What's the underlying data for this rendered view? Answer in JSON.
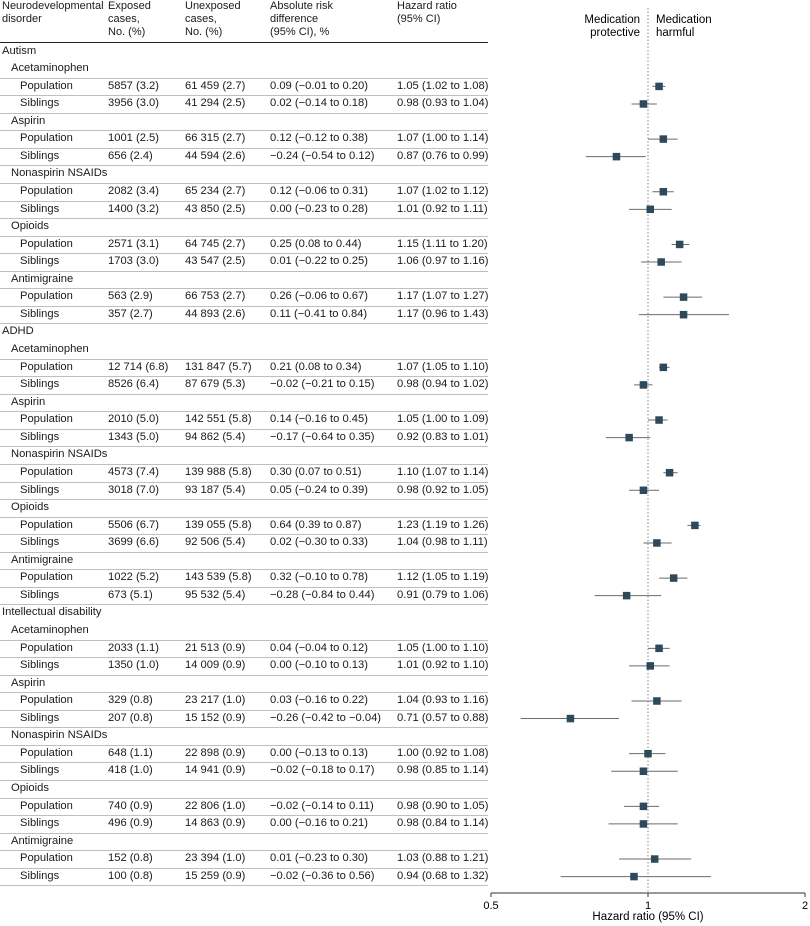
{
  "header": {
    "disorder": "Neurodevelopmental\ndisorder",
    "exposed": "Exposed\ncases,\nNo. (%)",
    "unexposed": "Unexposed\ncases,\nNo. (%)",
    "ard": "Absolute risk\ndifference\n(95% CI), %",
    "hr": "Hazard ratio\n(95% CI)",
    "protective": "Medication\nprotective",
    "harmful": "Medication\nharmful"
  },
  "axis": {
    "label": "Hazard ratio (95% CI)"
  },
  "colors": {
    "marker": "#2e4a5a",
    "ci": "#6b6b6b",
    "refline": "#888888"
  },
  "chart_data": {
    "type": "forest",
    "xscale": "log",
    "xlim": [
      0.5,
      2
    ],
    "ticks": [
      0.5,
      1,
      2
    ],
    "tick_labels": [
      "0.5",
      "1",
      "2"
    ],
    "reference": 1,
    "xlabel": "Hazard ratio (95% CI)",
    "rows": [
      {
        "kind": "disorder",
        "label": "Autism"
      },
      {
        "kind": "med",
        "label": "Acetaminophen"
      },
      {
        "kind": "data",
        "label": "Population",
        "exposed": "5857 (3.2)",
        "unexposed": "61 459 (2.7)",
        "ard": "0.09 (−0.01 to 0.20)",
        "hr_text": "1.05 (1.02 to 1.08)",
        "hr": 1.05,
        "lo": 1.02,
        "hi": 1.08
      },
      {
        "kind": "data",
        "label": "Siblings",
        "exposed": "3956 (3.0)",
        "unexposed": "41 294 (2.5)",
        "ard": "0.02 (−0.14 to 0.18)",
        "hr_text": "0.98 (0.93 to 1.04)",
        "hr": 0.98,
        "lo": 0.93,
        "hi": 1.04
      },
      {
        "kind": "med",
        "label": "Aspirin"
      },
      {
        "kind": "data",
        "label": "Population",
        "exposed": "1001 (2.5)",
        "unexposed": "66 315 (2.7)",
        "ard": "0.12 (−0.12 to 0.38)",
        "hr_text": "1.07 (1.00 to 1.14)",
        "hr": 1.07,
        "lo": 1.0,
        "hi": 1.14
      },
      {
        "kind": "data",
        "label": "Siblings",
        "exposed": "656 (2.4)",
        "unexposed": "44 594 (2.6)",
        "ard": "−0.24 (−0.54 to 0.12)",
        "hr_text": "0.87 (0.76 to 0.99)",
        "hr": 0.87,
        "lo": 0.76,
        "hi": 0.99
      },
      {
        "kind": "med",
        "label": "Nonaspirin NSAIDs"
      },
      {
        "kind": "data",
        "label": "Population",
        "exposed": "2082 (3.4)",
        "unexposed": "65 234 (2.7)",
        "ard": "0.12 (−0.06 to 0.31)",
        "hr_text": "1.07 (1.02 to 1.12)",
        "hr": 1.07,
        "lo": 1.02,
        "hi": 1.12
      },
      {
        "kind": "data",
        "label": "Siblings",
        "exposed": "1400 (3.2)",
        "unexposed": "43 850 (2.5)",
        "ard": "0.00 (−0.23 to 0.28)",
        "hr_text": "1.01 (0.92 to 1.11)",
        "hr": 1.01,
        "lo": 0.92,
        "hi": 1.11
      },
      {
        "kind": "med",
        "label": "Opioids"
      },
      {
        "kind": "data",
        "label": "Population",
        "exposed": "2571 (3.1)",
        "unexposed": "64 745 (2.7)",
        "ard": "0.25 (0.08 to 0.44)",
        "hr_text": "1.15 (1.11 to 1.20)",
        "hr": 1.15,
        "lo": 1.11,
        "hi": 1.2
      },
      {
        "kind": "data",
        "label": "Siblings",
        "exposed": "1703 (3.0)",
        "unexposed": "43 547 (2.5)",
        "ard": "0.01 (−0.22 to 0.25)",
        "hr_text": "1.06 (0.97 to 1.16)",
        "hr": 1.06,
        "lo": 0.97,
        "hi": 1.16
      },
      {
        "kind": "med",
        "label": "Antimigraine"
      },
      {
        "kind": "data",
        "label": "Population",
        "exposed": "563 (2.9)",
        "unexposed": "66 753 (2.7)",
        "ard": "0.26 (−0.06 to 0.67)",
        "hr_text": "1.17 (1.07 to 1.27)",
        "hr": 1.17,
        "lo": 1.07,
        "hi": 1.27
      },
      {
        "kind": "data",
        "label": "Siblings",
        "exposed": "357 (2.7)",
        "unexposed": "44 893 (2.6)",
        "ard": "0.11 (−0.41 to 0.84)",
        "hr_text": "1.17 (0.96 to 1.43)",
        "hr": 1.17,
        "lo": 0.96,
        "hi": 1.43
      },
      {
        "kind": "disorder",
        "label": "ADHD"
      },
      {
        "kind": "med",
        "label": "Acetaminophen"
      },
      {
        "kind": "data",
        "label": "Population",
        "exposed": "12 714 (6.8)",
        "unexposed": "131 847 (5.7)",
        "ard": "0.21 (0.08 to 0.34)",
        "hr_text": "1.07 (1.05 to 1.10)",
        "hr": 1.07,
        "lo": 1.05,
        "hi": 1.1
      },
      {
        "kind": "data",
        "label": "Siblings",
        "exposed": "8526 (6.4)",
        "unexposed": "87 679 (5.3)",
        "ard": "−0.02 (−0.21 to 0.15)",
        "hr_text": "0.98 (0.94 to 1.02)",
        "hr": 0.98,
        "lo": 0.94,
        "hi": 1.02
      },
      {
        "kind": "med",
        "label": "Aspirin"
      },
      {
        "kind": "data",
        "label": "Population",
        "exposed": "2010 (5.0)",
        "unexposed": "142 551 (5.8)",
        "ard": "0.14 (−0.16 to 0.45)",
        "hr_text": "1.05 (1.00 to 1.09)",
        "hr": 1.05,
        "lo": 1.0,
        "hi": 1.09
      },
      {
        "kind": "data",
        "label": "Siblings",
        "exposed": "1343 (5.0)",
        "unexposed": "94 862 (5.4)",
        "ard": "−0.17 (−0.64 to 0.35)",
        "hr_text": "0.92 (0.83 to 1.01)",
        "hr": 0.92,
        "lo": 0.83,
        "hi": 1.01
      },
      {
        "kind": "med",
        "label": "Nonaspirin NSAIDs"
      },
      {
        "kind": "data",
        "label": "Population",
        "exposed": "4573 (7.4)",
        "unexposed": "139 988 (5.8)",
        "ard": "0.30 (0.07 to 0.51)",
        "hr_text": "1.10 (1.07 to 1.14)",
        "hr": 1.1,
        "lo": 1.07,
        "hi": 1.14
      },
      {
        "kind": "data",
        "label": "Siblings",
        "exposed": "3018 (7.0)",
        "unexposed": "93 187 (5.4)",
        "ard": "0.05 (−0.24 to 0.39)",
        "hr_text": "0.98 (0.92 to 1.05)",
        "hr": 0.98,
        "lo": 0.92,
        "hi": 1.05
      },
      {
        "kind": "med",
        "label": "Opioids"
      },
      {
        "kind": "data",
        "label": "Population",
        "exposed": "5506 (6.7)",
        "unexposed": "139 055 (5.8)",
        "ard": "0.64 (0.39 to 0.87)",
        "hr_text": "1.23 (1.19 to 1.26)",
        "hr": 1.23,
        "lo": 1.19,
        "hi": 1.26
      },
      {
        "kind": "data",
        "label": "Siblings",
        "exposed": "3699 (6.6)",
        "unexposed": "92 506 (5.4)",
        "ard": "0.02 (−0.30 to 0.33)",
        "hr_text": "1.04 (0.98 to 1.11)",
        "hr": 1.04,
        "lo": 0.98,
        "hi": 1.11
      },
      {
        "kind": "med",
        "label": "Antimigraine"
      },
      {
        "kind": "data",
        "label": "Population",
        "exposed": "1022 (5.2)",
        "unexposed": "143 539 (5.8)",
        "ard": "0.32 (−0.10 to 0.78)",
        "hr_text": "1.12 (1.05 to 1.19)",
        "hr": 1.12,
        "lo": 1.05,
        "hi": 1.19
      },
      {
        "kind": "data",
        "label": "Siblings",
        "exposed": "673 (5.1)",
        "unexposed": "95 532 (5.4)",
        "ard": "−0.28 (−0.84 to 0.44)",
        "hr_text": "0.91 (0.79 to 1.06)",
        "hr": 0.91,
        "lo": 0.79,
        "hi": 1.06
      },
      {
        "kind": "disorder",
        "label": "Intellectual disability"
      },
      {
        "kind": "med",
        "label": "Acetaminophen"
      },
      {
        "kind": "data",
        "label": "Population",
        "exposed": "2033 (1.1)",
        "unexposed": "21 513 (0.9)",
        "ard": "0.04 (−0.04 to 0.12)",
        "hr_text": "1.05 (1.00 to 1.10)",
        "hr": 1.05,
        "lo": 1.0,
        "hi": 1.1
      },
      {
        "kind": "data",
        "label": "Siblings",
        "exposed": "1350 (1.0)",
        "unexposed": "14 009 (0.9)",
        "ard": "0.00 (−0.10 to 0.13)",
        "hr_text": "1.01 (0.92 to 1.10)",
        "hr": 1.01,
        "lo": 0.92,
        "hi": 1.1
      },
      {
        "kind": "med",
        "label": "Aspirin"
      },
      {
        "kind": "data",
        "label": "Population",
        "exposed": "329 (0.8)",
        "unexposed": "23 217 (1.0)",
        "ard": "0.03 (−0.16 to 0.22)",
        "hr_text": "1.04 (0.93 to 1.16)",
        "hr": 1.04,
        "lo": 0.93,
        "hi": 1.16
      },
      {
        "kind": "data",
        "label": "Siblings",
        "exposed": "207 (0.8)",
        "unexposed": "15 152 (0.9)",
        "ard": "−0.26 (−0.42 to −0.04)",
        "hr_text": "0.71 (0.57 to 0.88)",
        "hr": 0.71,
        "lo": 0.57,
        "hi": 0.88
      },
      {
        "kind": "med",
        "label": "Nonaspirin NSAIDs"
      },
      {
        "kind": "data",
        "label": "Population",
        "exposed": "648 (1.1)",
        "unexposed": "22 898 (0.9)",
        "ard": "0.00 (−0.13 to 0.13)",
        "hr_text": "1.00 (0.92 to 1.08)",
        "hr": 1.0,
        "lo": 0.92,
        "hi": 1.08
      },
      {
        "kind": "data",
        "label": "Siblings",
        "exposed": "418 (1.0)",
        "unexposed": "14 941 (0.9)",
        "ard": "−0.02 (−0.18 to 0.17)",
        "hr_text": "0.98 (0.85 to 1.14)",
        "hr": 0.98,
        "lo": 0.85,
        "hi": 1.14
      },
      {
        "kind": "med",
        "label": "Opioids"
      },
      {
        "kind": "data",
        "label": "Population",
        "exposed": "740 (0.9)",
        "unexposed": "22 806 (1.0)",
        "ard": "−0.02 (−0.14 to 0.11)",
        "hr_text": "0.98 (0.90 to 1.05)",
        "hr": 0.98,
        "lo": 0.9,
        "hi": 1.05
      },
      {
        "kind": "data",
        "label": "Siblings",
        "exposed": "496 (0.9)",
        "unexposed": "14 863 (0.9)",
        "ard": "0.00 (−0.16 to 0.21)",
        "hr_text": "0.98 (0.84 to 1.14)",
        "hr": 0.98,
        "lo": 0.84,
        "hi": 1.14
      },
      {
        "kind": "med",
        "label": "Antimigraine"
      },
      {
        "kind": "data",
        "label": "Population",
        "exposed": "152 (0.8)",
        "unexposed": "23 394 (1.0)",
        "ard": "0.01 (−0.23 to 0.30)",
        "hr_text": "1.03 (0.88 to 1.21)",
        "hr": 1.03,
        "lo": 0.88,
        "hi": 1.21
      },
      {
        "kind": "data",
        "label": "Siblings",
        "exposed": "100 (0.8)",
        "unexposed": "15 259 (0.9)",
        "ard": "−0.02 (−0.36 to 0.56)",
        "hr_text": "0.94 (0.68 to 1.32)",
        "hr": 0.94,
        "lo": 0.68,
        "hi": 1.32
      }
    ]
  }
}
